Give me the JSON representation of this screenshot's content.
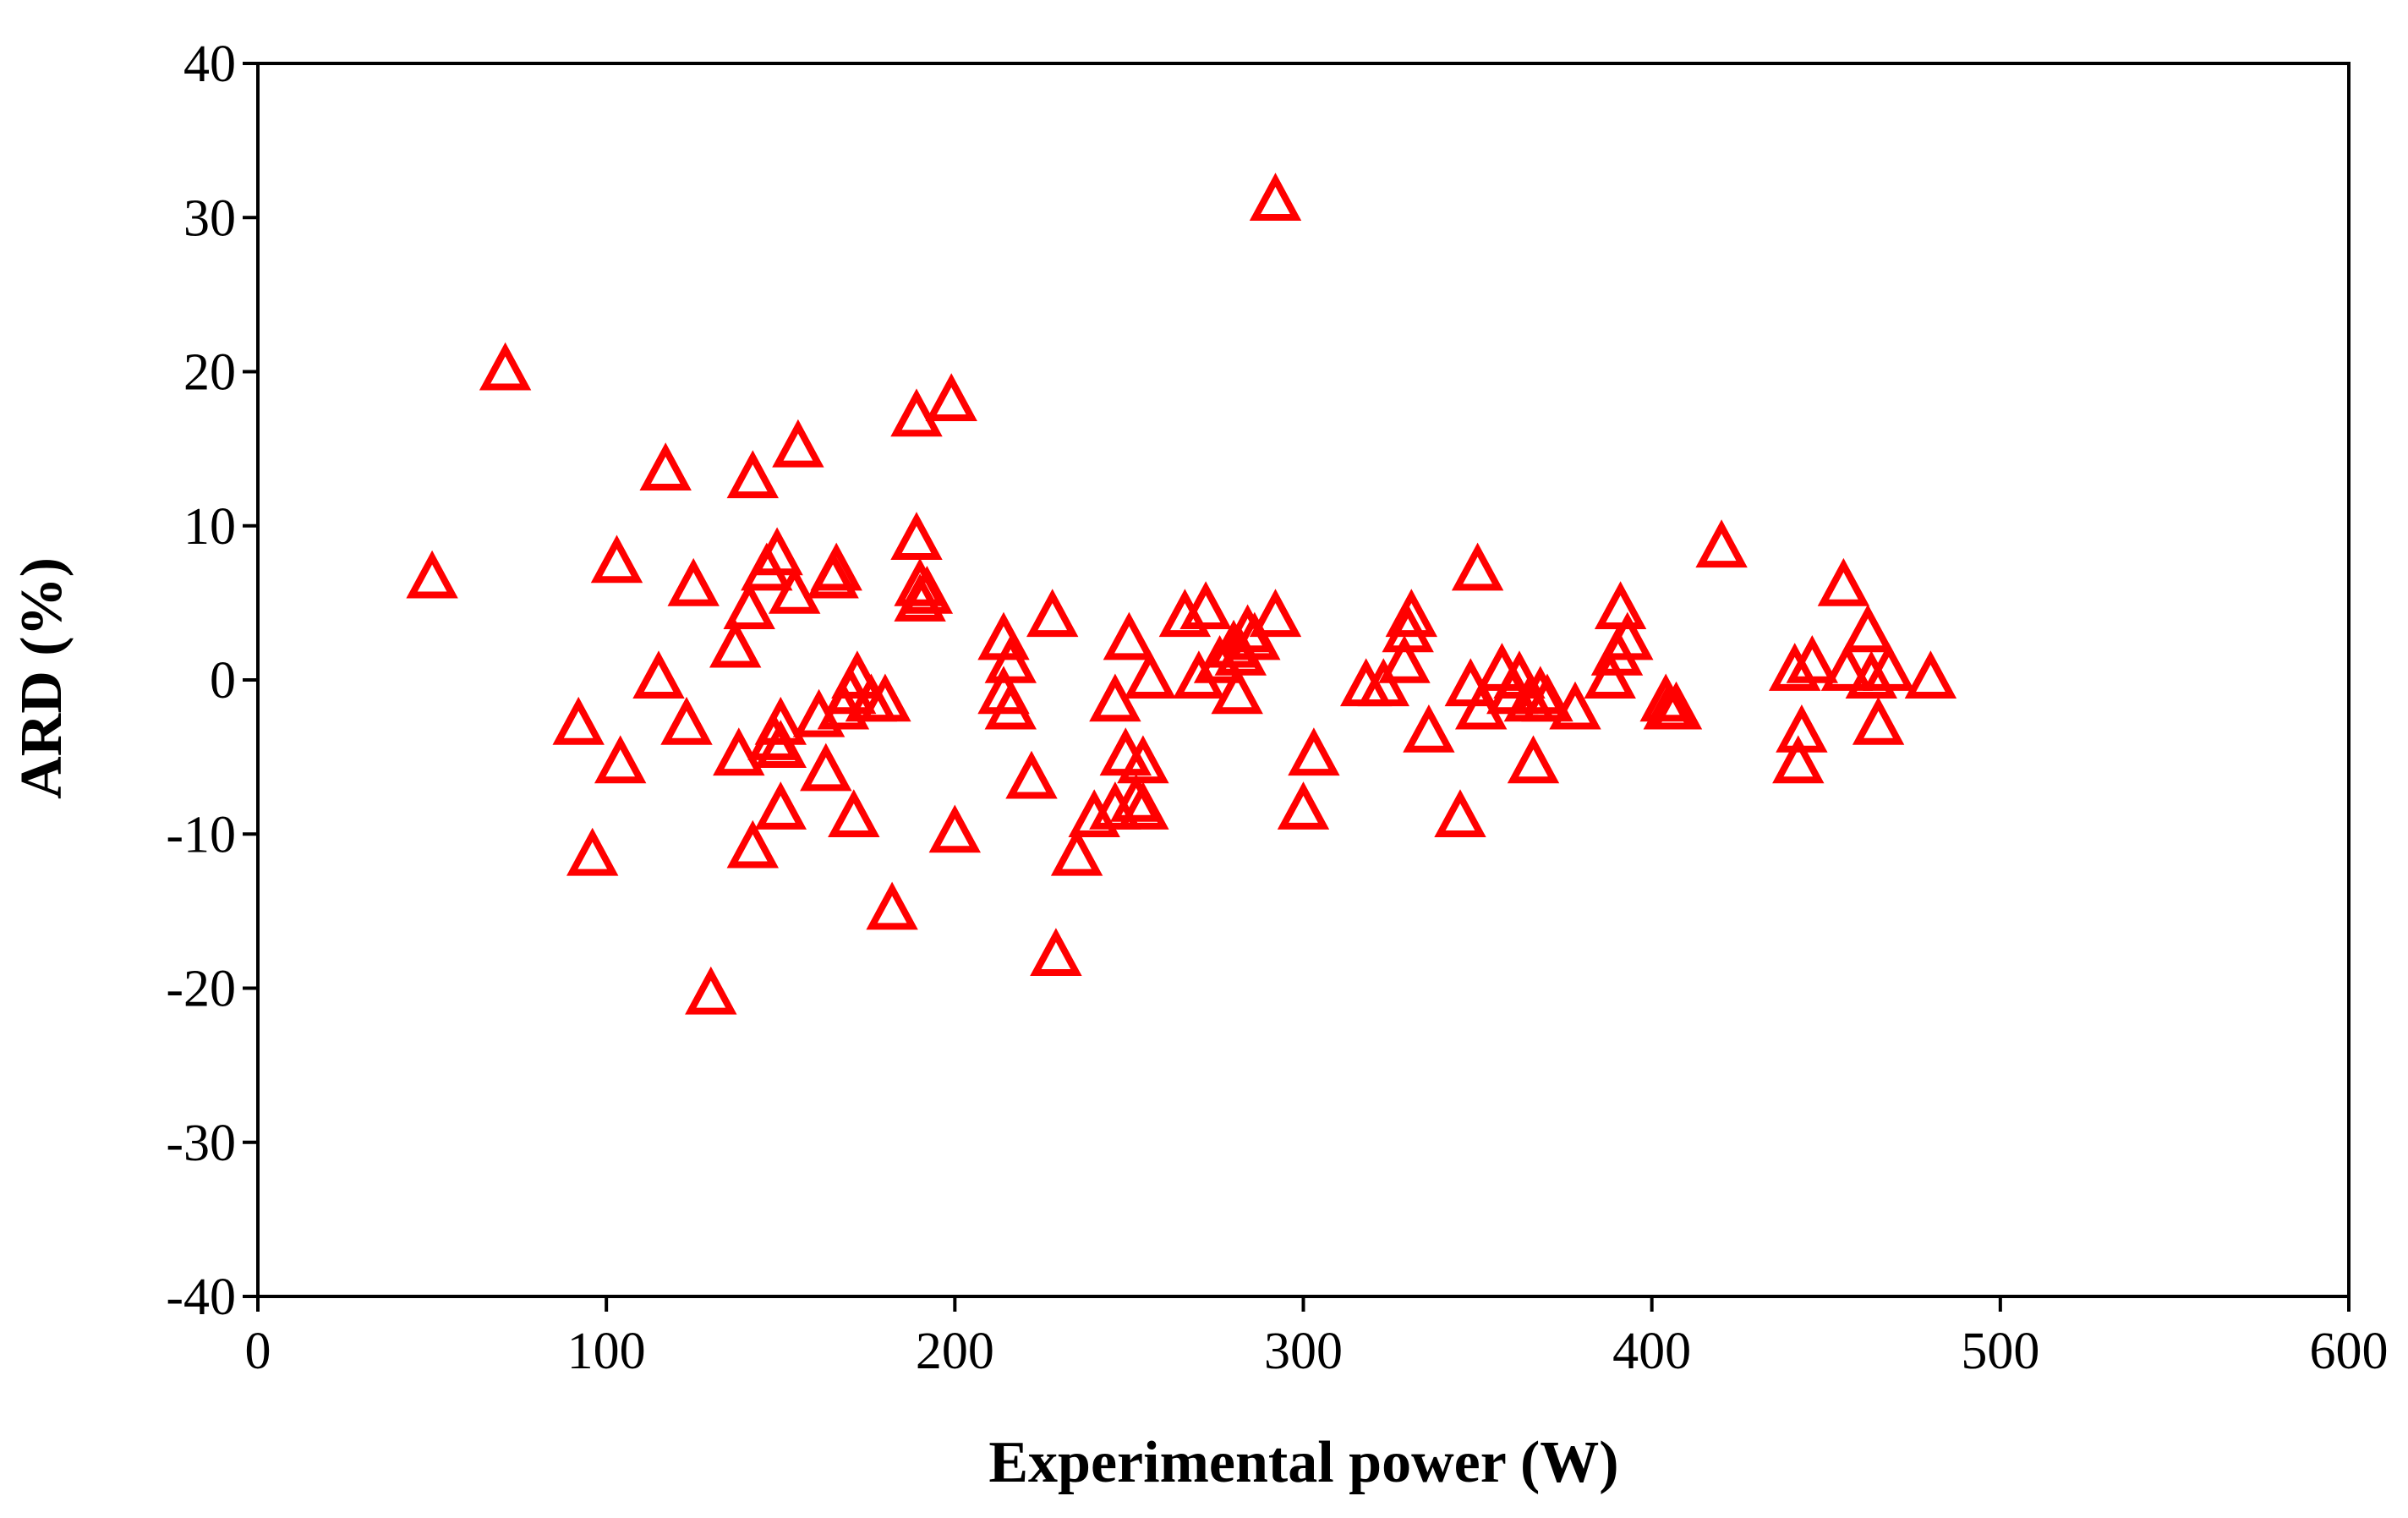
{
  "chart_data": {
    "type": "scatter",
    "title": "",
    "xlabel": "Experimental power (W)",
    "ylabel": "ARD (%)",
    "xlim": [
      0,
      600
    ],
    "ylim": [
      -40,
      40
    ],
    "xticks": [
      0,
      100,
      200,
      300,
      400,
      500,
      600
    ],
    "yticks": [
      -40,
      -30,
      -20,
      -10,
      0,
      10,
      20,
      30,
      40
    ],
    "grid": false,
    "legend": "none",
    "marker": "open-triangle",
    "color": "#ff0000",
    "series": [
      {
        "name": "ARD",
        "points": [
          [
            50,
            6.5
          ],
          [
            71,
            20
          ],
          [
            92,
            -3
          ],
          [
            96,
            -11.5
          ],
          [
            103,
            7.5
          ],
          [
            104,
            -5.5
          ],
          [
            115,
            0
          ],
          [
            117,
            13.5
          ],
          [
            123,
            -3
          ],
          [
            125,
            6
          ],
          [
            130,
            -20.5
          ],
          [
            137,
            2
          ],
          [
            138,
            -5
          ],
          [
            141,
            4.5
          ],
          [
            142,
            13
          ],
          [
            142,
            -11
          ],
          [
            146,
            7
          ],
          [
            148,
            -4
          ],
          [
            149,
            8
          ],
          [
            150,
            -3
          ],
          [
            150,
            -4.5
          ],
          [
            150,
            -8.5
          ],
          [
            154,
            5.5
          ],
          [
            155,
            15
          ],
          [
            161,
            -2.5
          ],
          [
            163,
            -6
          ],
          [
            165,
            6.5
          ],
          [
            166,
            7
          ],
          [
            168,
            -2
          ],
          [
            170,
            -1
          ],
          [
            171,
            -9
          ],
          [
            172,
            0
          ],
          [
            176,
            -1.5
          ],
          [
            180,
            -1.5
          ],
          [
            182,
            -15
          ],
          [
            189,
            9
          ],
          [
            189,
            17
          ],
          [
            190,
            6
          ],
          [
            190,
            5
          ],
          [
            192,
            5.5
          ],
          [
            199,
            18
          ],
          [
            200,
            -10
          ],
          [
            214,
            2.5
          ],
          [
            214,
            -1
          ],
          [
            216,
            1
          ],
          [
            216,
            -2
          ],
          [
            222,
            -6.5
          ],
          [
            228,
            4
          ],
          [
            229,
            -18
          ],
          [
            235,
            -11.5
          ],
          [
            240,
            -9
          ],
          [
            246,
            -8.5
          ],
          [
            246,
            -1.5
          ],
          [
            249,
            -5
          ],
          [
            250,
            2.5
          ],
          [
            252,
            -8
          ],
          [
            254,
            -5.5
          ],
          [
            254,
            -8.5
          ],
          [
            256,
            0
          ],
          [
            266,
            4
          ],
          [
            270,
            0
          ],
          [
            272,
            4.5
          ],
          [
            276,
            1
          ],
          [
            280,
            2
          ],
          [
            281,
            -1
          ],
          [
            282,
            1.5
          ],
          [
            284,
            3
          ],
          [
            286,
            2.5
          ],
          [
            292,
            4
          ],
          [
            292,
            31
          ],
          [
            300,
            -8.5
          ],
          [
            303,
            -5
          ],
          [
            318,
            -0.5
          ],
          [
            323,
            -0.5
          ],
          [
            329,
            1
          ],
          [
            330,
            3
          ],
          [
            331,
            4
          ],
          [
            336,
            -3.5
          ],
          [
            345,
            -9
          ],
          [
            348,
            -0.5
          ],
          [
            350,
            7
          ],
          [
            351,
            -2
          ],
          [
            357,
            0.5
          ],
          [
            360,
            -1
          ],
          [
            362,
            0
          ],
          [
            365,
            -1.5
          ],
          [
            366,
            -5.5
          ],
          [
            368,
            -1
          ],
          [
            370,
            -1.5
          ],
          [
            378,
            -2
          ],
          [
            388,
            0
          ],
          [
            390,
            1.5
          ],
          [
            391,
            4.5
          ],
          [
            393,
            2.5
          ],
          [
            404,
            -1.5
          ],
          [
            405,
            -2
          ],
          [
            407,
            -2
          ],
          [
            420,
            8.5
          ],
          [
            441,
            0.5
          ],
          [
            442,
            -5.5
          ],
          [
            443,
            -3.5
          ],
          [
            446,
            1
          ],
          [
            455,
            6
          ],
          [
            456,
            0.5
          ],
          [
            462,
            3
          ],
          [
            463,
            0
          ],
          [
            465,
            -3
          ],
          [
            468,
            0.5
          ],
          [
            480,
            0
          ]
        ]
      }
    ]
  }
}
